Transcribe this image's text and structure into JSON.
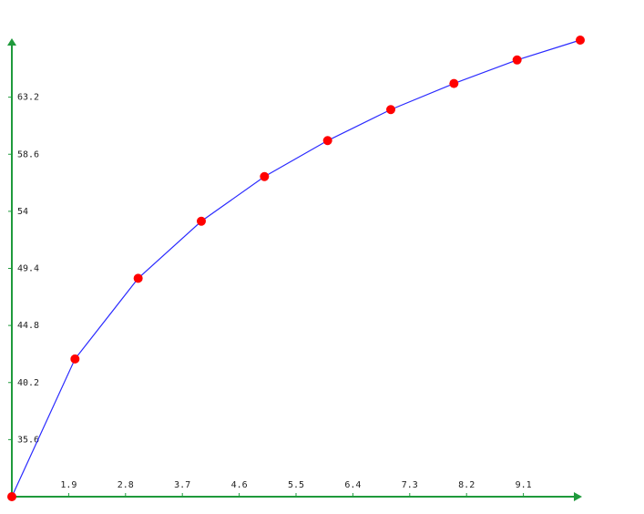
{
  "chart_data": {
    "type": "line",
    "x": [
      1,
      2,
      3,
      4,
      5,
      6,
      7,
      8,
      9,
      10
    ],
    "series": [
      {
        "color": "#2a2aff",
        "marker_color": "#ff0000",
        "values": [
          31,
          42.1,
          48.6,
          53.2,
          56.8,
          59.7,
          62.2,
          64.3,
          66.2,
          67.8
        ]
      }
    ],
    "xlim": [
      1,
      10
    ],
    "ylim": [
      31,
      67.8
    ],
    "xticks": [
      1.9,
      2.8,
      3.7,
      4.6,
      5.5,
      6.4,
      7.3,
      8.2,
      9.1
    ],
    "yticks": [
      35.6,
      40.2,
      44.8,
      49.4,
      54,
      58.6,
      63.2
    ]
  }
}
